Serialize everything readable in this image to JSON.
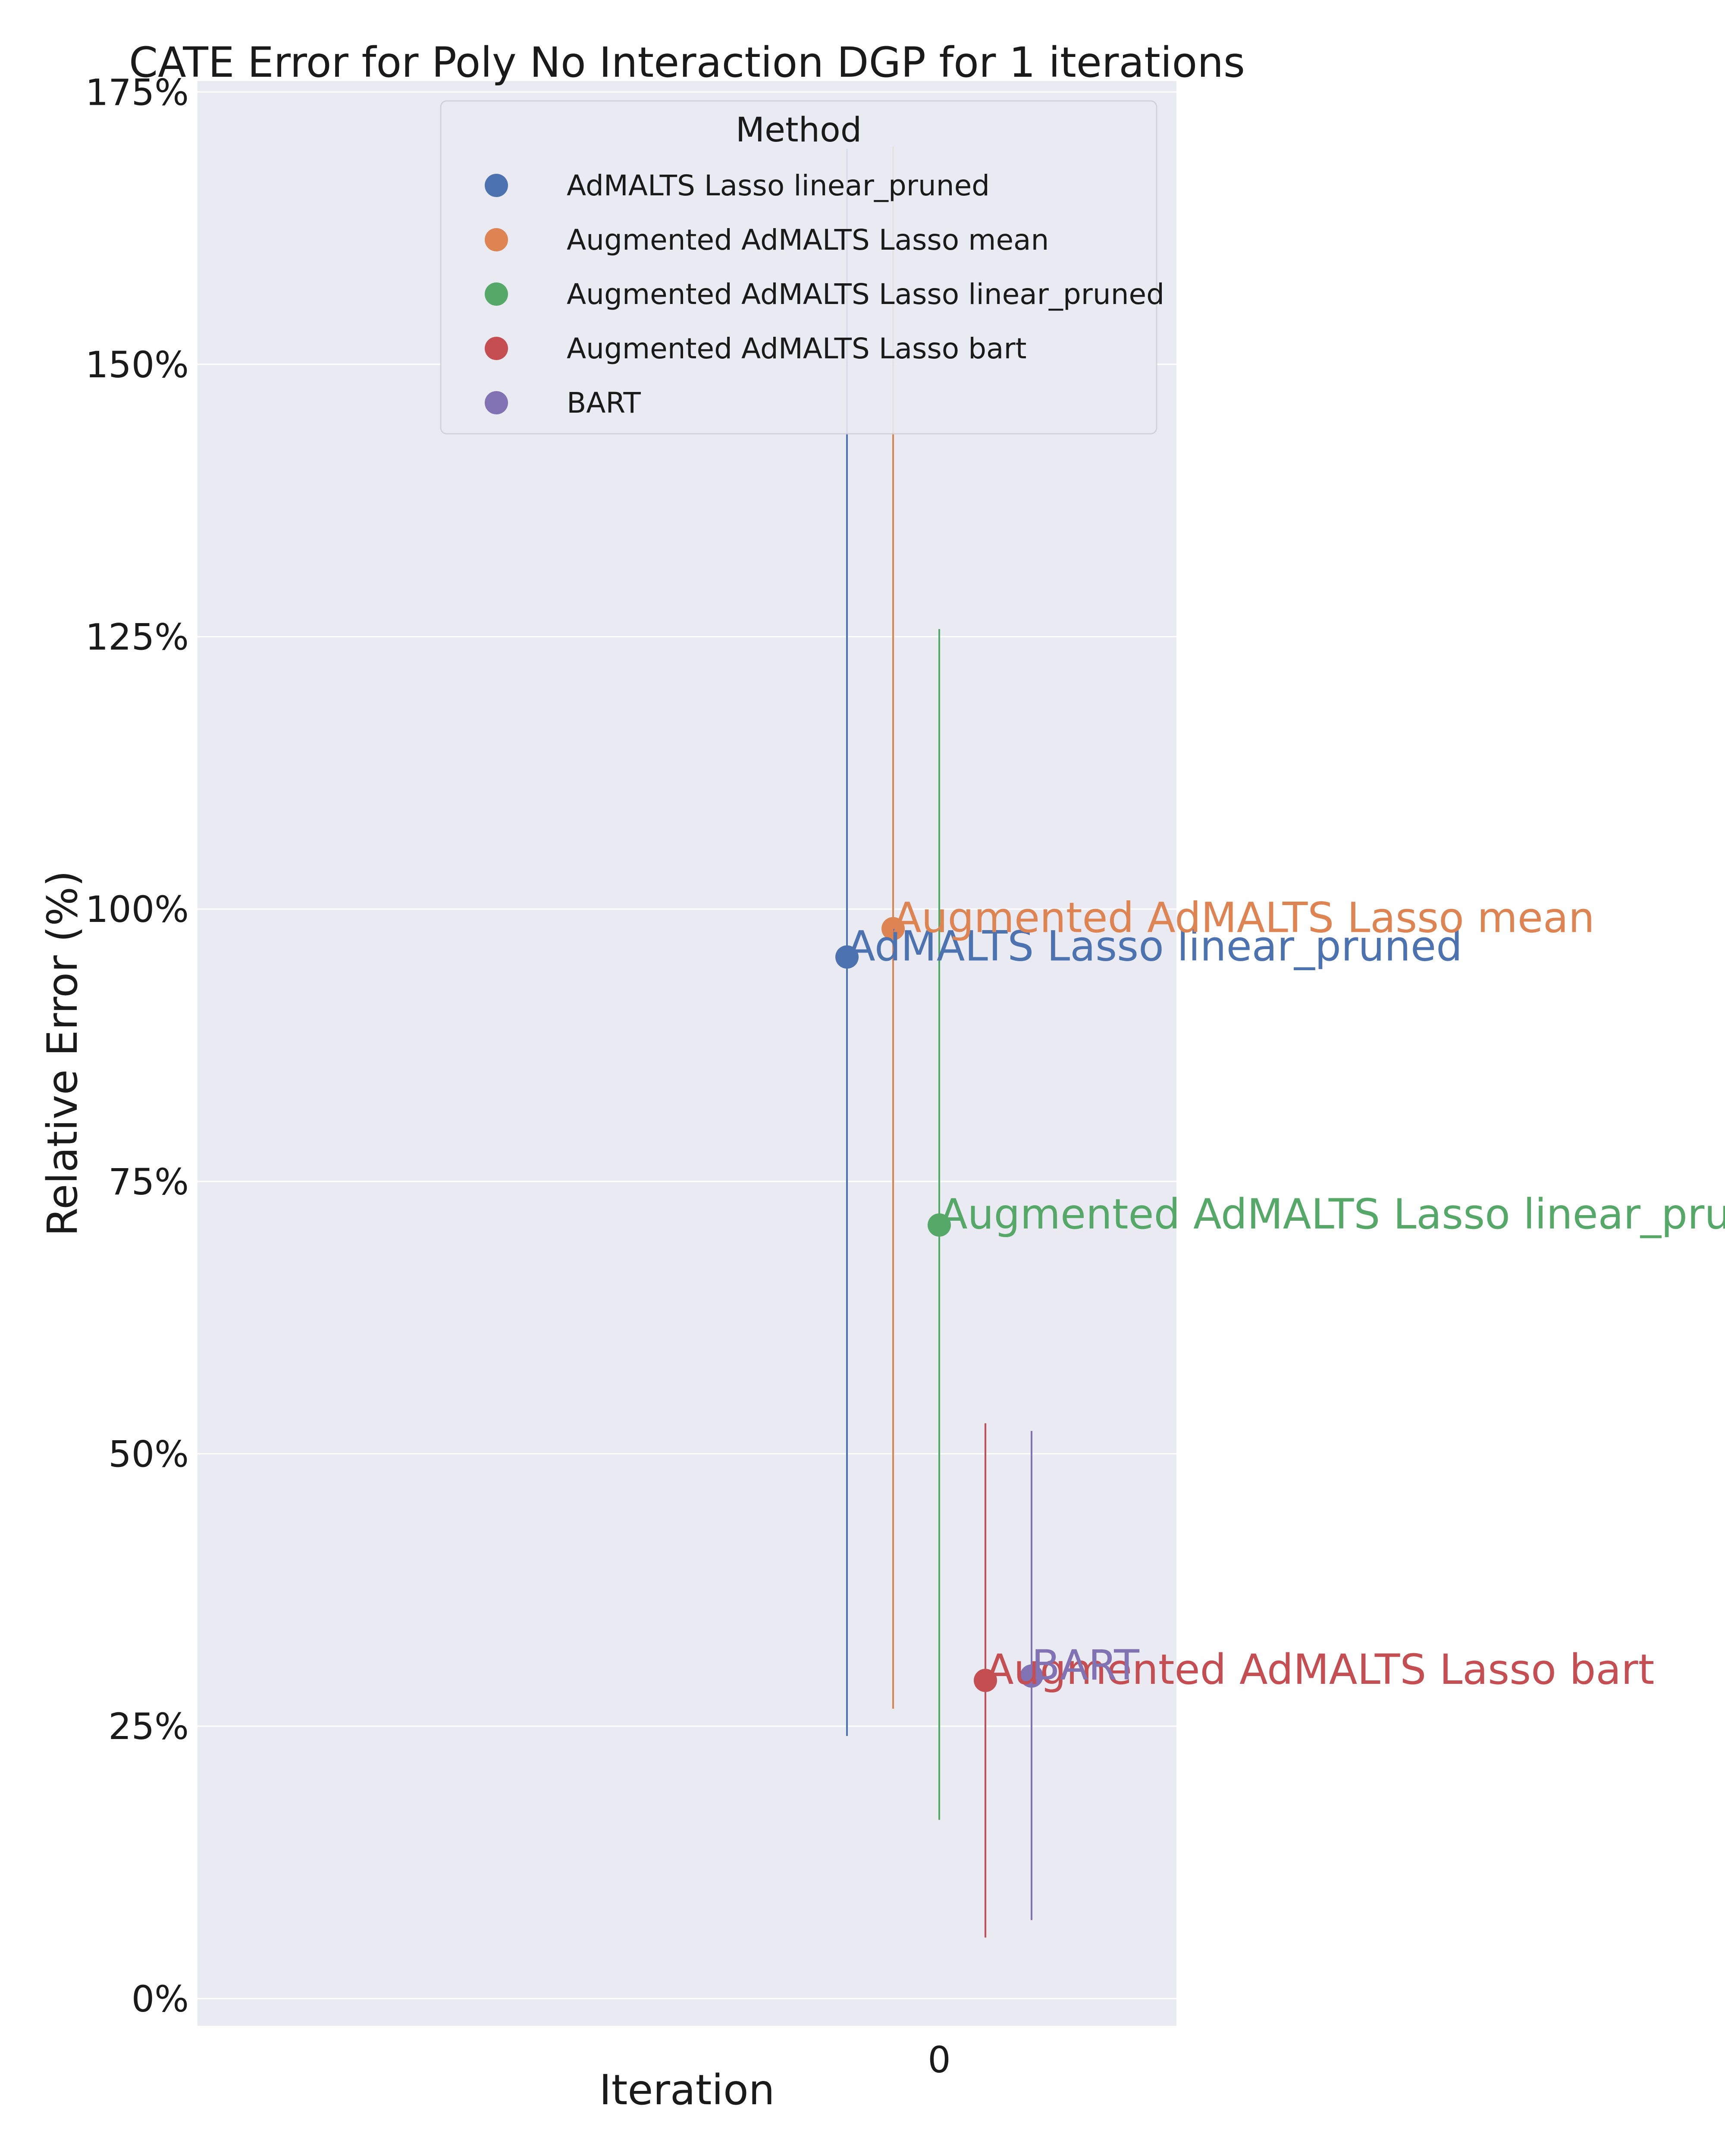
{
  "chart_data": {
    "type": "scatter",
    "title": "CATE Error for Poly No Interaction DGP for 1 iterations",
    "xlabel": "Iteration",
    "ylabel": "Relative Error (%)",
    "x_categories": [
      "0"
    ],
    "ylim": [
      -2.5,
      176
    ],
    "y_ticks": [
      0,
      25,
      50,
      75,
      100,
      125,
      150,
      175
    ],
    "y_tick_labels": [
      "0%",
      "25%",
      "50%",
      "75%",
      "100%",
      "125%",
      "150%",
      "175%"
    ],
    "grid": true,
    "legend": {
      "title": "Method",
      "placement": "top-center"
    },
    "series": [
      {
        "name": "AdMALTS Lasso linear_pruned",
        "color": "#4c72b0",
        "x": 0,
        "y": 95.6,
        "error_low": 24.1,
        "error_high": 169.8
      },
      {
        "name": "Augmented AdMALTS Lasso mean",
        "color": "#dd8452",
        "x": 0,
        "y": 98.2,
        "error_low": 26.6,
        "error_high": 170.0
      },
      {
        "name": "Augmented AdMALTS Lasso linear_pruned",
        "color": "#55a868",
        "x": 0,
        "y": 71.0,
        "error_low": 16.4,
        "error_high": 125.7
      },
      {
        "name": "Augmented AdMALTS Lasso bart",
        "color": "#c44e52",
        "x": 0,
        "y": 29.2,
        "error_low": 5.6,
        "error_high": 52.8
      },
      {
        "name": "BART",
        "color": "#8172b3",
        "x": 0,
        "y": 29.6,
        "error_low": 7.2,
        "error_high": 52.1
      }
    ]
  },
  "plot_background": "#eaeaf2"
}
